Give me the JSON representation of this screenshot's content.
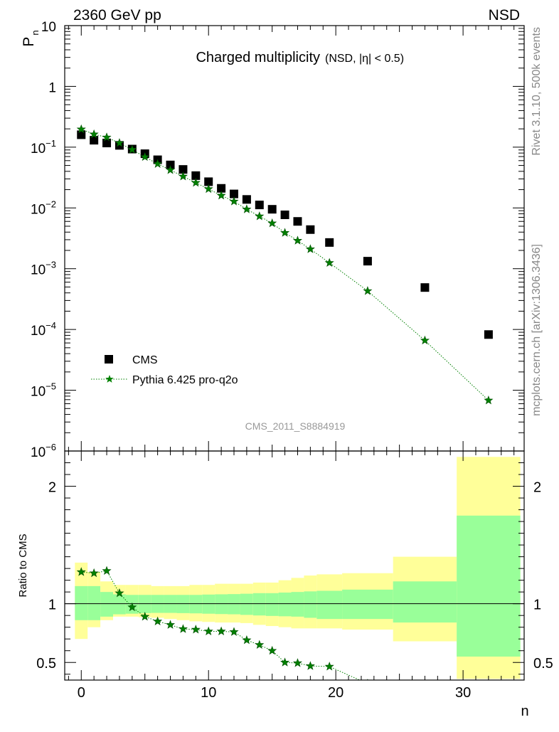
{
  "header": {
    "left": "2360 GeV pp",
    "right": "NSD"
  },
  "side_labels": {
    "rivet": "Rivet 3.1.10,  500k events",
    "mcplots": "mcplots.cern.ch [arXiv:1306.3436]"
  },
  "chart_data": [
    {
      "type": "scatter",
      "title": "Charged multiplicity",
      "subtitle": "(NSD, |η| < 0.5)",
      "watermark": "CMS_2011_S8884919",
      "ylabel": "P",
      "ylabel_sub": "n",
      "yscale": "log",
      "xlim": [
        -1.3,
        34.8
      ],
      "ylim": [
        1e-06,
        10
      ],
      "y_ticks": [
        {
          "v": 10,
          "base": "10",
          "exp": ""
        },
        {
          "v": 1,
          "base": "1",
          "exp": ""
        },
        {
          "v": 0.1,
          "base": "10",
          "exp": "−1"
        },
        {
          "v": 0.01,
          "base": "10",
          "exp": "−2"
        },
        {
          "v": 0.001,
          "base": "10",
          "exp": "−3"
        },
        {
          "v": 0.0001,
          "base": "10",
          "exp": "−4"
        },
        {
          "v": 1e-05,
          "base": "10",
          "exp": "−5"
        },
        {
          "v": 1e-06,
          "base": "10",
          "exp": "−6"
        }
      ],
      "legend_position": "bottom-left",
      "series": [
        {
          "name": "CMS",
          "marker": "square",
          "color": "#000000",
          "x": [
            0,
            1,
            2,
            3,
            4,
            5,
            6,
            7,
            8,
            9,
            10,
            11,
            12,
            13,
            14,
            15,
            16,
            17,
            18,
            19.5,
            22.5,
            27,
            32
          ],
          "y": [
            0.16,
            0.13,
            0.117,
            0.107,
            0.093,
            0.078,
            0.062,
            0.051,
            0.043,
            0.034,
            0.027,
            0.021,
            0.017,
            0.0138,
            0.0112,
            0.0095,
            0.0077,
            0.006,
            0.0044,
            0.0027,
            0.00133,
            0.00049,
            8.25e-05
          ]
        },
        {
          "name": "Pythia 6.425 pro-q2o",
          "marker": "star",
          "line": "dotted",
          "color": "#008000",
          "x": [
            0,
            1,
            2,
            3,
            4,
            5,
            6,
            7,
            8,
            9,
            10,
            11,
            12,
            13,
            14,
            15,
            16,
            17,
            18,
            19.5,
            22.5,
            27,
            32
          ],
          "y": [
            0.197,
            0.163,
            0.145,
            0.117,
            0.091,
            0.069,
            0.053,
            0.042,
            0.033,
            0.026,
            0.0205,
            0.016,
            0.0128,
            0.0095,
            0.0073,
            0.0056,
            0.0039,
            0.0029,
            0.0021,
            0.00125,
            0.00043,
            6.6e-05,
            6.8e-06
          ]
        }
      ]
    },
    {
      "type": "line",
      "ylabel": "Ratio to CMS",
      "xlabel": "n",
      "xlim": [
        -1.3,
        34.8
      ],
      "ylim": [
        0.35,
        2.3
      ],
      "x_ticks": [
        0,
        10,
        20,
        30
      ],
      "y_ticks": [
        0.5,
        1,
        2
      ],
      "reference_line": 1,
      "bands": {
        "edges": [
          -0.5,
          0.5,
          1.5,
          2.5,
          3.5,
          4.5,
          5.5,
          6.5,
          7.5,
          8.5,
          9.5,
          10.5,
          11.5,
          12.5,
          13.5,
          14.5,
          15.5,
          16.5,
          17.5,
          18.5,
          20.5,
          24.5,
          29.5,
          34.5
        ],
        "stat_lo": [
          0.86,
          0.86,
          0.89,
          0.91,
          0.915,
          0.92,
          0.922,
          0.922,
          0.92,
          0.918,
          0.915,
          0.912,
          0.91,
          0.905,
          0.9,
          0.896,
          0.893,
          0.89,
          0.88,
          0.87,
          0.87,
          0.84,
          0.55
        ],
        "stat_hi": [
          1.15,
          1.15,
          1.1,
          1.08,
          1.075,
          1.075,
          1.075,
          1.075,
          1.075,
          1.075,
          1.078,
          1.08,
          1.082,
          1.085,
          1.09,
          1.09,
          1.095,
          1.1,
          1.105,
          1.11,
          1.12,
          1.19,
          1.75
        ],
        "syst_lo": [
          0.7,
          0.8,
          0.86,
          0.89,
          0.89,
          0.885,
          0.88,
          0.87,
          0.86,
          0.85,
          0.845,
          0.84,
          0.84,
          0.835,
          0.82,
          0.81,
          0.8,
          0.79,
          0.79,
          0.79,
          0.78,
          0.68,
          0.36
        ],
        "syst_hi": [
          1.35,
          1.27,
          1.19,
          1.16,
          1.16,
          1.16,
          1.15,
          1.15,
          1.15,
          1.16,
          1.16,
          1.17,
          1.17,
          1.17,
          1.18,
          1.18,
          1.2,
          1.22,
          1.24,
          1.25,
          1.26,
          1.4,
          2.25
        ],
        "stat_color": "#99ff99",
        "syst_color": "#ffff99"
      },
      "series": [
        {
          "name": "Pythia 6.425 pro-q2o",
          "marker": "star",
          "line": "dotted",
          "color": "#008000",
          "x": [
            0,
            1,
            2,
            3,
            4,
            5,
            6,
            7,
            8,
            9,
            10,
            11,
            12,
            13,
            14,
            15,
            16,
            17,
            18,
            19.5,
            22.5
          ],
          "y": [
            1.27,
            1.26,
            1.28,
            1.09,
            0.97,
            0.89,
            0.85,
            0.82,
            0.785,
            0.78,
            0.765,
            0.765,
            0.76,
            0.69,
            0.65,
            0.6,
            0.5,
            0.495,
            0.47,
            0.465,
            0.32
          ]
        }
      ]
    }
  ]
}
